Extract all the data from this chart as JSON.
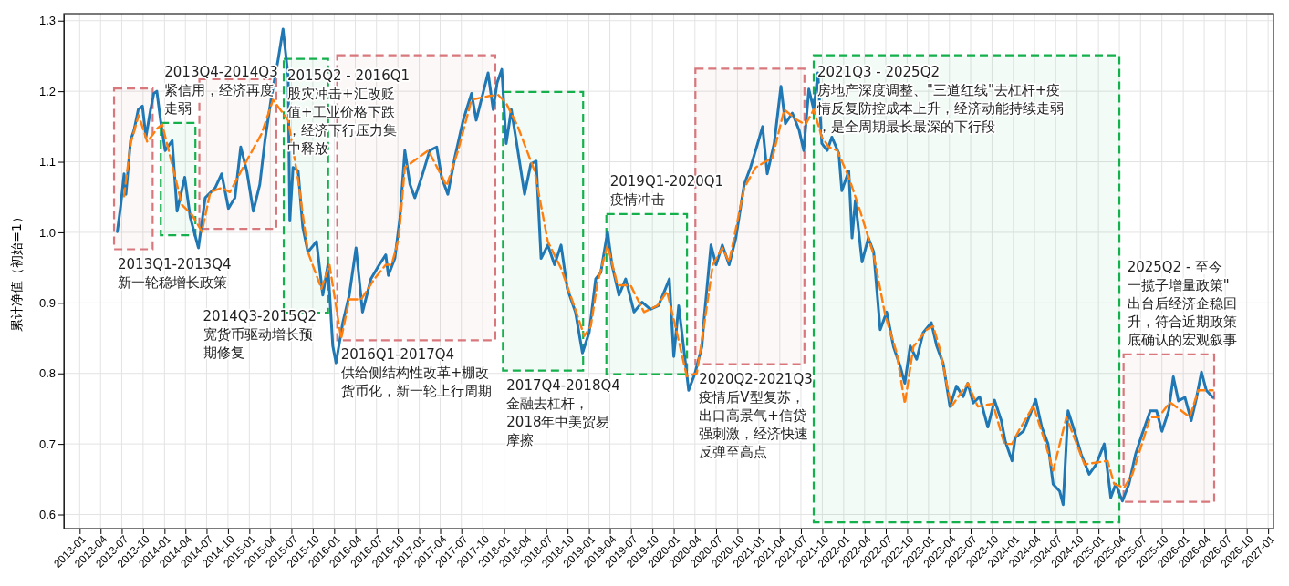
{
  "chart_data": {
    "type": "line",
    "ylabel": "累计净值（初始=1）",
    "xlim": [
      "2012-10-25",
      "2027-01-24"
    ],
    "ylim": [
      0.58,
      1.31
    ],
    "xticks": [
      {
        "value": "2013-01",
        "label": "2013-01"
      },
      {
        "value": "2013-04",
        "label": "2013-04"
      },
      {
        "value": "2013-07",
        "label": "2013-07"
      },
      {
        "value": "2013-10",
        "label": "2013-10"
      },
      {
        "value": "2014-01",
        "label": "2014-01"
      },
      {
        "value": "2014-04",
        "label": "2014-04"
      },
      {
        "value": "2014-07",
        "label": "2014-07"
      },
      {
        "value": "2014-10",
        "label": "2014-10"
      },
      {
        "value": "2015-01",
        "label": "2015-01"
      },
      {
        "value": "2015-04",
        "label": "2015-04"
      },
      {
        "value": "2015-07",
        "label": "2015-07"
      },
      {
        "value": "2015-10",
        "label": "2015-10"
      },
      {
        "value": "2016-01",
        "label": "2016-01"
      },
      {
        "value": "2016-04",
        "label": "2016-04"
      },
      {
        "value": "2016-07",
        "label": "2016-07"
      },
      {
        "value": "2016-10",
        "label": "2016-10"
      },
      {
        "value": "2017-01",
        "label": "2017-01"
      },
      {
        "value": "2017-04",
        "label": "2017-04"
      },
      {
        "value": "2017-07",
        "label": "2017-07"
      },
      {
        "value": "2017-10",
        "label": "2017-10"
      },
      {
        "value": "2018-01",
        "label": "2018-01"
      },
      {
        "value": "2018-04",
        "label": "2018-04"
      },
      {
        "value": "2018-07",
        "label": "2018-07"
      },
      {
        "value": "2018-10",
        "label": "2018-10"
      },
      {
        "value": "2019-01",
        "label": "2019-01"
      },
      {
        "value": "2019-04",
        "label": "2019-04"
      },
      {
        "value": "2019-07",
        "label": "2019-07"
      },
      {
        "value": "2019-10",
        "label": "2019-10"
      },
      {
        "value": "2020-01",
        "label": "2020-01"
      },
      {
        "value": "2020-04",
        "label": "2020-04"
      },
      {
        "value": "2020-07",
        "label": "2020-07"
      },
      {
        "value": "2020-10",
        "label": "2020-10"
      },
      {
        "value": "2021-01",
        "label": "2021-01"
      },
      {
        "value": "2021-04",
        "label": "2021-04"
      },
      {
        "value": "2021-07",
        "label": "2021-07"
      },
      {
        "value": "2021-10",
        "label": "2021-10"
      },
      {
        "value": "2022-01",
        "label": "2022-01"
      },
      {
        "value": "2022-04",
        "label": "2022-04"
      },
      {
        "value": "2022-07",
        "label": "2022-07"
      },
      {
        "value": "2022-10",
        "label": "2022-10"
      },
      {
        "value": "2023-01",
        "label": "2023-01"
      },
      {
        "value": "2023-04",
        "label": "2023-04"
      },
      {
        "value": "2023-07",
        "label": "2023-07"
      },
      {
        "value": "2023-10",
        "label": "2023-10"
      },
      {
        "value": "2024-01",
        "label": "2024-01"
      },
      {
        "value": "2024-04",
        "label": "2024-04"
      },
      {
        "value": "2024-07",
        "label": "2024-07"
      },
      {
        "value": "2024-10",
        "label": "2024-10"
      },
      {
        "value": "2025-01",
        "label": "2025-01"
      },
      {
        "value": "2025-04",
        "label": "2025-04"
      },
      {
        "value": "2025-07",
        "label": "2025-07"
      },
      {
        "value": "2025-10",
        "label": "2025-10"
      },
      {
        "value": "2026-01",
        "label": "2026-01"
      },
      {
        "value": "2026-04",
        "label": "2026-04"
      },
      {
        "value": "2026-07",
        "label": "2026-07"
      },
      {
        "value": "2026-10",
        "label": "2026-10"
      },
      {
        "value": "2027-01",
        "label": "2027-01"
      }
    ],
    "yticks": [
      0.6,
      0.7,
      0.8,
      0.9,
      {
        "value": 1,
        "label": "1.0"
      },
      1.1,
      1.2,
      1.3
    ],
    "grid": true,
    "marker": "none",
    "series": [
      {
        "color": "#1f77b4",
        "line_style": "solid",
        "x": [
          "2013-06-12",
          "2013-06-27",
          "2013-07-11",
          "2013-07-19",
          "2013-08-08",
          "2013-08-23",
          "2013-09-10",
          "2013-09-28",
          "2013-10-13",
          "2013-11-02",
          "2013-11-16",
          "2013-11-29",
          "2013-12-15",
          "2014-01-04",
          "2014-02-03",
          "2014-02-24",
          "2014-03-29",
          "2014-04-22",
          "2014-05-27",
          "2014-06-25",
          "2014-08-07",
          "2014-09-04",
          "2014-10-03",
          "2014-10-31",
          "2014-11-25",
          "2014-12-21",
          "2015-01-18",
          "2015-02-15",
          "2015-03-09",
          "2015-04-06",
          "2015-05-05",
          "2015-05-26",
          "2015-06-17",
          "2015-06-24",
          "2015-07-08",
          "2015-07-30",
          "2015-08-19",
          "2015-09-10",
          "2015-10-17",
          "2015-11-13",
          "2015-12-05",
          "2015-12-26",
          "2016-01-09",
          "2016-02-07",
          "2016-03-06",
          "2016-04-04",
          "2016-05-02",
          "2016-06-07",
          "2016-07-13",
          "2016-08-10",
          "2016-08-21",
          "2016-09-18",
          "2016-10-10",
          "2016-10-31",
          "2016-11-22",
          "2016-12-13",
          "2017-01-11",
          "2017-02-15",
          "2017-03-17",
          "2017-04-07",
          "2017-05-04",
          "2017-06-03",
          "2017-07-09",
          "2017-08-14",
          "2017-09-03",
          "2017-10-02",
          "2017-10-24",
          "2017-11-15",
          "2017-12-02",
          "2017-12-22",
          "2018-01-10",
          "2018-02-01",
          "2018-03-01",
          "2018-03-30",
          "2018-04-26",
          "2018-05-19",
          "2018-06-09",
          "2018-07-08",
          "2018-08-06",
          "2018-09-03",
          "2018-09-30",
          "2018-11-04",
          "2018-12-04",
          "2019-01-02",
          "2019-01-30",
          "2019-02-21",
          "2019-03-22",
          "2019-04-10",
          "2019-05-10",
          "2019-06-08",
          "2019-07-14",
          "2019-08-18",
          "2019-09-22",
          "2019-10-27",
          "2019-11-26",
          "2019-12-13",
          "2020-01-01",
          "2020-01-22",
          "2020-02-12",
          "2020-03-05",
          "2020-04-01",
          "2020-05-01",
          "2020-05-10",
          "2020-06-09",
          "2020-07-01",
          "2020-07-28",
          "2020-08-26",
          "2020-09-24",
          "2020-10-30",
          "2020-11-26",
          "2020-12-18",
          "2021-01-17",
          "2021-02-06",
          "2021-03-08",
          "2021-04-06",
          "2021-04-25",
          "2021-05-25",
          "2021-06-23",
          "2021-07-13",
          "2021-08-04",
          "2021-08-25",
          "2021-09-12",
          "2021-09-29",
          "2021-10-22",
          "2021-11-11",
          "2021-12-11",
          "2021-12-24",
          "2022-01-23",
          "2022-02-06",
          "2022-02-20",
          "2022-03-21",
          "2022-04-17",
          "2022-05-10",
          "2022-06-07",
          "2022-07-05",
          "2022-08-03",
          "2022-09-01",
          "2022-09-21",
          "2022-10-14",
          "2022-11-11",
          "2022-12-09",
          "2023-01-13",
          "2023-02-05",
          "2023-03-05",
          "2023-04-03",
          "2023-05-01",
          "2023-05-30",
          "2023-06-19",
          "2023-07-12",
          "2023-08-09",
          "2023-09-13",
          "2023-10-12",
          "2023-11-10",
          "2023-11-27",
          "2023-12-26",
          "2024-01-09",
          "2024-02-13",
          "2024-03-13",
          "2024-04-06",
          "2024-05-02",
          "2024-05-29",
          "2024-06-20",
          "2024-07-18",
          "2024-08-02",
          "2024-08-23",
          "2024-09-20",
          "2024-10-18",
          "2024-11-22",
          "2024-12-22",
          "2025-01-26",
          "2025-02-23",
          "2025-03-16",
          "2025-04-14",
          "2025-05-12",
          "2025-06-10",
          "2025-07-08",
          "2025-08-12",
          "2025-09-08",
          "2025-10-01",
          "2025-10-30",
          "2025-11-19",
          "2025-12-11",
          "2026-01-08",
          "2026-02-04",
          "2026-02-27",
          "2026-03-20",
          "2026-04-10",
          "2026-05-08"
        ],
        "values": [
          1.001,
          1.039,
          1.083,
          1.054,
          1.13,
          1.145,
          1.174,
          1.179,
          1.135,
          1.174,
          1.197,
          1.2,
          1.159,
          1.116,
          1.13,
          1.03,
          1.078,
          1.021,
          0.978,
          1.049,
          1.063,
          1.083,
          1.034,
          1.049,
          1.121,
          1.087,
          1.03,
          1.068,
          1.13,
          1.192,
          1.245,
          1.288,
          1.221,
          1.016,
          1.092,
          1.087,
          1.007,
          0.972,
          0.987,
          0.911,
          0.954,
          0.839,
          0.815,
          0.872,
          0.911,
          0.978,
          0.887,
          0.934,
          0.954,
          0.968,
          0.939,
          0.963,
          1.021,
          1.116,
          1.068,
          1.049,
          1.078,
          1.116,
          1.121,
          1.078,
          1.054,
          1.106,
          1.159,
          1.197,
          1.159,
          1.197,
          1.226,
          1.174,
          1.212,
          1.231,
          1.126,
          1.174,
          1.116,
          1.054,
          1.097,
          1.101,
          0.963,
          0.982,
          0.954,
          0.982,
          0.92,
          0.887,
          0.829,
          0.858,
          0.934,
          0.943,
          1.001,
          0.954,
          0.911,
          0.934,
          0.887,
          0.901,
          0.891,
          0.896,
          0.92,
          0.934,
          0.824,
          0.896,
          0.838,
          0.776,
          0.8,
          0.838,
          0.876,
          0.982,
          0.954,
          0.982,
          0.954,
          0.992,
          1.068,
          1.092,
          1.116,
          1.15,
          1.083,
          1.126,
          1.207,
          1.154,
          1.169,
          1.145,
          1.116,
          1.203,
          1.174,
          1.226,
          1.126,
          1.116,
          1.135,
          1.112,
          1.059,
          1.087,
          0.992,
          1.045,
          0.958,
          0.992,
          0.972,
          0.862,
          0.887,
          0.838,
          0.81,
          0.786,
          0.839,
          0.82,
          0.858,
          0.872,
          0.839,
          0.814,
          0.753,
          0.782,
          0.767,
          0.786,
          0.758,
          0.767,
          0.724,
          0.762,
          0.733,
          0.704,
          0.676,
          0.709,
          0.718,
          0.742,
          0.763,
          0.724,
          0.7,
          0.643,
          0.633,
          0.614,
          0.747,
          0.718,
          0.686,
          0.657,
          0.671,
          0.7,
          0.624,
          0.643,
          0.619,
          0.643,
          0.686,
          0.714,
          0.747,
          0.747,
          0.718,
          0.747,
          0.795,
          0.761,
          0.766,
          0.733,
          0.766,
          0.802,
          0.776,
          0.766
        ]
      },
      {
        "color": "#ff7f0e",
        "line_style": "dashed",
        "x": [
          "2013-07-11",
          "2013-08-08",
          "2013-09-12",
          "2013-10-19",
          "2013-11-30",
          "2013-12-22",
          "2014-01-19",
          "2014-03-17",
          "2014-04-29",
          "2014-06-11",
          "2014-07-17",
          "2014-09-04",
          "2014-10-09",
          "2014-12-13",
          "2015-02-23",
          "2015-04-13",
          "2015-05-05",
          "2015-06-17",
          "2015-07-30",
          "2015-09-10",
          "2015-11-07",
          "2015-12-12",
          "2016-01-31",
          "2016-03-06",
          "2016-04-26",
          "2016-06-22",
          "2016-08-10",
          "2016-09-04",
          "2016-10-05",
          "2016-10-31",
          "2017-02-09",
          "2017-04-29",
          "2017-06-17",
          "2017-08-14",
          "2017-10-24",
          "2017-12-06",
          "2018-01-10",
          "2018-03-01",
          "2018-05-12",
          "2018-07-08",
          "2018-09-03",
          "2018-10-29",
          "2018-12-12",
          "2019-01-09",
          "2019-02-07",
          "2019-03-22",
          "2019-05-04",
          "2019-06-29",
          "2019-08-26",
          "2019-10-22",
          "2019-12-03",
          "2020-01-14",
          "2020-02-26",
          "2020-04-09",
          "2020-05-06",
          "2020-06-17",
          "2020-07-28",
          "2020-08-26",
          "2020-10-30",
          "2020-12-18",
          "2021-03-01",
          "2021-04-20",
          "2021-06-15",
          "2021-07-21",
          "2021-08-25",
          "2021-09-29",
          "2021-10-29",
          "2021-12-04",
          "2022-01-23",
          "2022-03-13",
          "2022-05-10",
          "2022-06-29",
          "2022-08-17",
          "2022-09-21",
          "2022-10-28",
          "2022-12-24",
          "2023-01-21",
          "2023-02-19",
          "2023-04-09",
          "2023-06-19",
          "2023-08-01",
          "2023-10-05",
          "2023-11-23",
          "2023-12-26",
          "2024-01-23",
          "2024-03-27",
          "2024-05-15",
          "2024-06-20",
          "2024-08-16",
          "2024-11-02",
          "2025-02-09",
          "2025-03-10",
          "2025-04-21",
          "2025-05-27",
          "2025-08-12",
          "2025-09-16",
          "2025-11-05",
          "2026-01-29",
          "2026-03-06",
          "2026-05-08"
        ],
        "values": [
          1.051,
          1.126,
          1.166,
          1.128,
          1.147,
          1.153,
          1.116,
          1.039,
          1.025,
          1.001,
          1.057,
          1.063,
          1.057,
          1.097,
          1.14,
          1.188,
          1.178,
          1.159,
          1.074,
          0.972,
          0.92,
          0.954,
          0.849,
          0.905,
          0.905,
          0.934,
          0.954,
          0.954,
          0.992,
          1.092,
          1.116,
          1.066,
          1.116,
          1.188,
          1.193,
          1.195,
          1.183,
          1.15,
          1.087,
          0.987,
          0.949,
          0.896,
          0.853,
          0.867,
          0.929,
          0.982,
          0.925,
          0.925,
          0.887,
          0.896,
          0.916,
          0.858,
          0.796,
          0.8,
          0.858,
          0.954,
          0.978,
          0.958,
          1.063,
          1.092,
          1.106,
          1.174,
          1.159,
          1.153,
          1.174,
          1.135,
          1.121,
          1.116,
          1.078,
          1.03,
          0.968,
          0.882,
          0.829,
          0.757,
          0.838,
          0.862,
          0.867,
          0.834,
          0.753,
          0.786,
          0.753,
          0.757,
          0.7,
          0.7,
          0.718,
          0.754,
          0.704,
          0.662,
          0.738,
          0.671,
          0.676,
          0.643,
          0.638,
          0.657,
          0.738,
          0.738,
          0.759,
          0.738,
          0.776,
          0.776
        ]
      }
    ],
    "bands": [
      {
        "axis": "x",
        "from": "2013-05-29",
        "to": "2013-11-11",
        "color": "#d8787c"
      },
      {
        "axis": "x",
        "from": "2013-12-16",
        "to": "2014-05-14",
        "color": "#14b04c"
      },
      {
        "axis": "x",
        "from": "2014-05-31",
        "to": "2015-04-27",
        "color": "#d8787c"
      },
      {
        "axis": "x",
        "from": "2015-05-29",
        "to": "2015-12-06",
        "color": "#14b04c"
      },
      {
        "axis": "x",
        "from": "2016-01-14",
        "to": "2017-11-24",
        "color": "#d8787c"
      },
      {
        "axis": "x",
        "from": "2017-12-27",
        "to": "2018-12-07",
        "color": "#14b04c"
      },
      {
        "axis": "x",
        "from": "2019-03-17",
        "to": "2020-02-27",
        "color": "#14b04c"
      },
      {
        "axis": "x",
        "from": "2020-04-03",
        "to": "2021-07-16",
        "color": "#d8787c"
      },
      {
        "axis": "x",
        "from": "2021-08-25",
        "to": "2025-04-01",
        "color": "#14b04c"
      },
      {
        "axis": "x",
        "from": "2025-04-19",
        "to": "2026-05-14",
        "color": "#d8787c"
      }
    ],
    "annotations": [
      "2013Q1-2013Q4",
      "新一轮稳增长政策",
      "2013Q4-2014Q3",
      "紧信用，经济再度走弱",
      "2014Q3-2015Q2",
      "宽货币驱动增长预期修复",
      "2015Q2 - 2016Q1",
      "股灾冲击+汇改贬值+工业价格下跌，经济下行压力集中释放",
      "2016Q1-2017Q4",
      "供给侧结构性改革+棚改货币化，新一轮上行周期",
      "2017Q4-2018Q4",
      "金融去杠杆，2018年中美贸易摩擦",
      "2019Q1-2020Q1",
      "疫情冲击",
      "2020Q2-2021Q3",
      "疫情后V型复苏，出口高景气+信贷强刺激，经济快速反弹至高点",
      "2021Q3 - 2025Q2",
      "房地产深度调整、\"三道红线\"去杠杆+疫情反复防控成本上升，经济动能持续走弱，是全周期最长最深的下行段",
      "2025Q2 - 至今",
      "一揽子增量政策\"出台后经济企稳回升，符合近期政策底确认的宏观叙事"
    ]
  }
}
